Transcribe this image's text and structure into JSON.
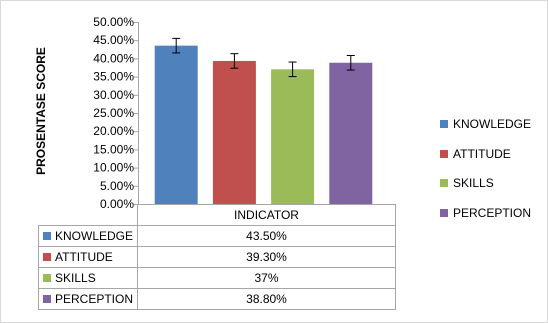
{
  "chart_data": {
    "type": "bar",
    "ylabel": "PROSENTASE SCORE",
    "xlabel": "INDICATOR",
    "ylim": [
      0,
      50
    ],
    "y_ticks": [
      "0.00%",
      "5.00%",
      "10.00%",
      "15.00%",
      "20.00%",
      "25.00%",
      "30.00%",
      "35.00%",
      "40.00%",
      "45.00%",
      "50.00%"
    ],
    "error_bar": 2,
    "series": [
      {
        "name": "KNOWLEDGE",
        "value": 43.5,
        "value_label": "43.50%",
        "color": "#4f81bd"
      },
      {
        "name": "ATTITUDE",
        "value": 39.3,
        "value_label": "39.30%",
        "color": "#c0504d"
      },
      {
        "name": "SKILLS",
        "value": 37,
        "value_label": "37%",
        "color": "#9bbb59"
      },
      {
        "name": "PERCEPTION",
        "value": 38.8,
        "value_label": "38.80%",
        "color": "#8064a2"
      }
    ],
    "grid": false,
    "legend_position": "right"
  }
}
